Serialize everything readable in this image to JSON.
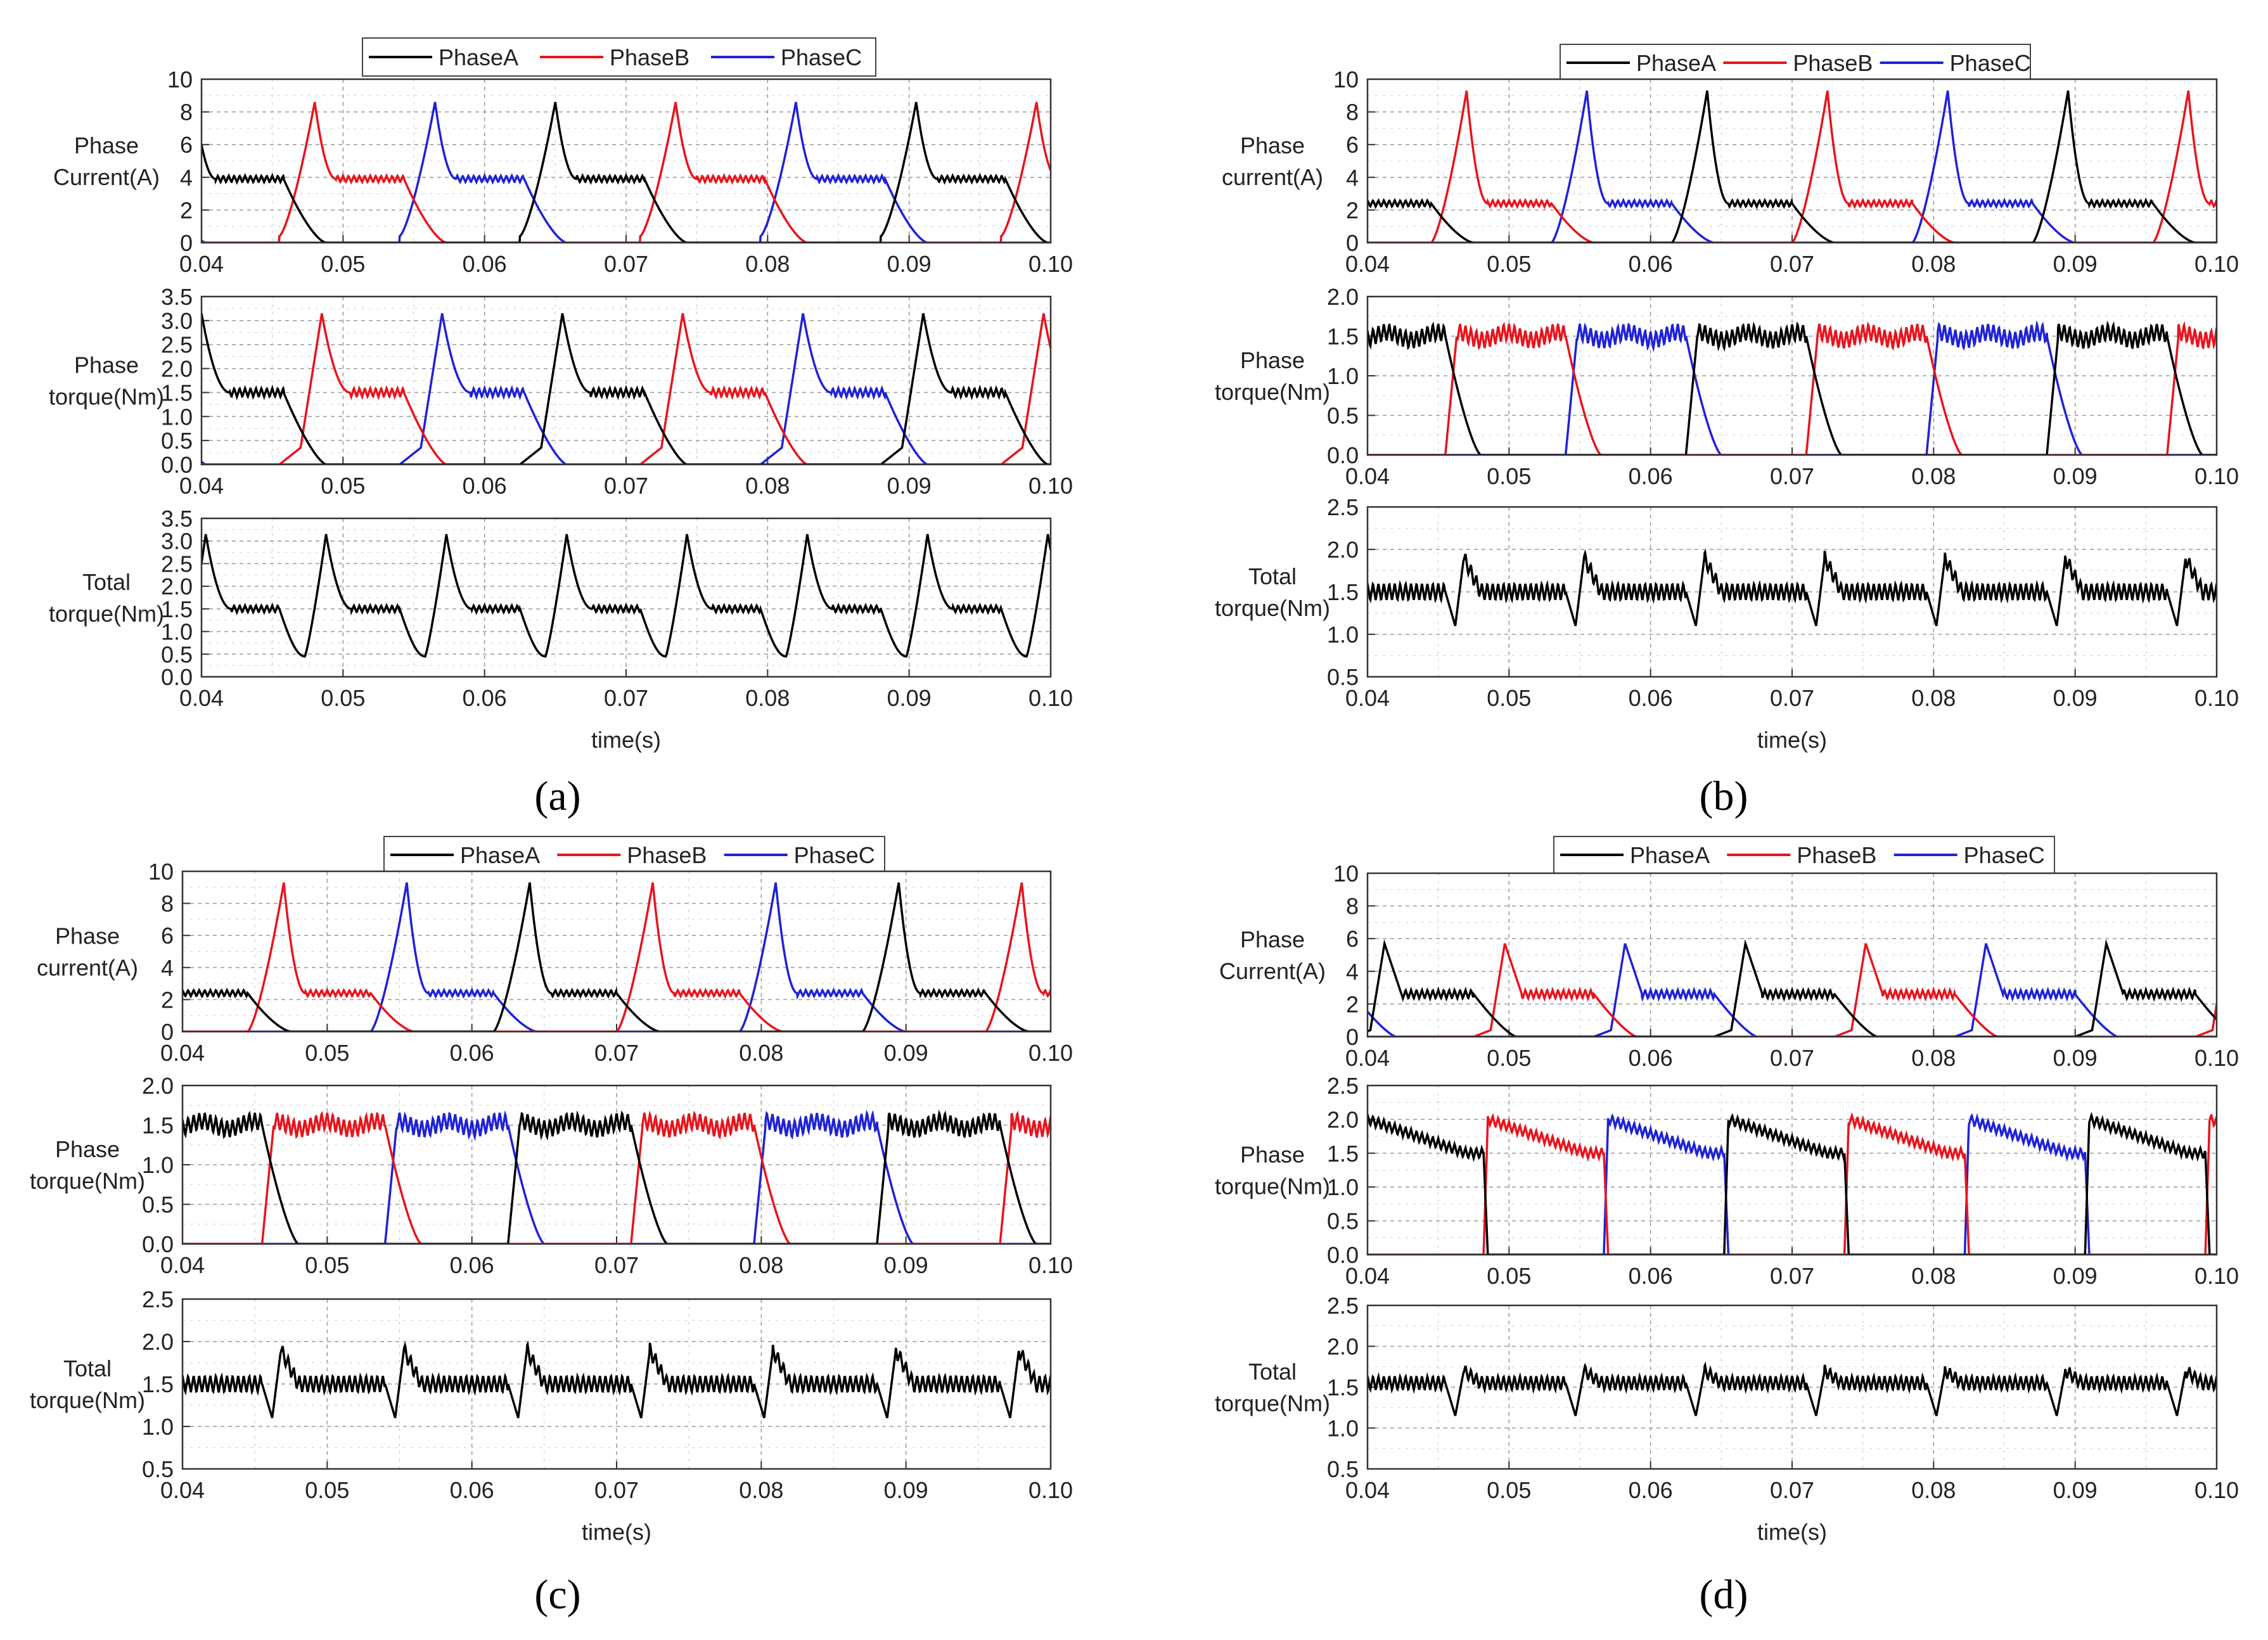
{
  "figure": {
    "time_label": "time(s)",
    "x_ticks": [
      "0.04",
      "0.05",
      "0.06",
      "0.07",
      "0.08",
      "0.09",
      "0.10"
    ],
    "x_range": [
      0.04,
      0.1
    ],
    "colors": {
      "PhaseA": "#000000",
      "PhaseB": "#e8141c",
      "PhaseC": "#1f22d6"
    },
    "legend": [
      "PhaseA",
      "PhaseB",
      "PhaseC"
    ]
  },
  "chart_data": [
    {
      "type": "line",
      "id": "a",
      "caption": "(a)",
      "legend": [
        "PhaseA",
        "PhaseB",
        "PhaseC"
      ],
      "xlabel": "time(s)",
      "x_ticks": [
        "0.04",
        "0.05",
        "0.06",
        "0.07",
        "0.08",
        "0.09",
        "0.10"
      ],
      "period": 0.0255,
      "panels": [
        {
          "kind": "current",
          "ylabel": [
            "Phase",
            "Current(A)"
          ],
          "ylim": [
            0,
            10
          ],
          "y_ticks": [
            "0",
            "2",
            "4",
            "6",
            "8",
            "10"
          ],
          "onsets": {
            "PhaseA": 0.037,
            "PhaseB": 0.0455,
            "PhaseC": 0.054
          },
          "on_width": 0.0088,
          "peak": 8.6,
          "flat": 3.9,
          "start_level": 0.4,
          "ripple": 0.05,
          "tail": 0.003
        },
        {
          "kind": "phase_torque",
          "ylabel": [
            "Phase",
            "torque(Nm)"
          ],
          "ylim": [
            0,
            3.5
          ],
          "y_ticks": [
            "0.0",
            "0.5",
            "1.0",
            "1.5",
            "2.0",
            "2.5",
            "3.0",
            "3.5"
          ],
          "onsets": {
            "PhaseA": 0.037,
            "PhaseB": 0.0455,
            "PhaseC": 0.054
          },
          "on_width": 0.0088,
          "peak": 3.15,
          "flat": 1.5,
          "ripple": 0.06,
          "tail": 0.003
        },
        {
          "kind": "total",
          "ylabel": [
            "Total",
            "torque(Nm)"
          ],
          "ylim": [
            0,
            3.5
          ],
          "y_ticks": [
            "0.0",
            "0.5",
            "1.0",
            "1.5",
            "2.0",
            "2.5",
            "3.0",
            "3.5"
          ],
          "peak": 3.15,
          "flat": 1.5,
          "dip": 0.45,
          "ripple": 0.05
        }
      ]
    },
    {
      "type": "line",
      "id": "b",
      "caption": "(b)",
      "legend": [
        "PhaseA",
        "PhaseB",
        "PhaseC"
      ],
      "xlabel": "time(s)",
      "x_ticks": [
        "0.04",
        "0.05",
        "0.06",
        "0.07",
        "0.08",
        "0.09",
        "0.10"
      ],
      "period": 0.0255,
      "panels": [
        {
          "kind": "current",
          "ylabel": [
            "Phase",
            "current(A)"
          ],
          "ylim": [
            0,
            10
          ],
          "y_ticks": [
            "0",
            "2",
            "4",
            "6",
            "8",
            "10"
          ],
          "onsets": {
            "PhaseA": 0.036,
            "PhaseB": 0.0445,
            "PhaseC": 0.053
          },
          "on_width": 0.0085,
          "peak": 9.3,
          "flat": 2.4,
          "start_level": 0,
          "ripple": 0.08,
          "tail": 0.003
        },
        {
          "kind": "phase_torque_flat",
          "ylabel": [
            "Phase",
            "torque(Nm)"
          ],
          "ylim": [
            0,
            2.0
          ],
          "y_ticks": [
            "0.0",
            "0.5",
            "1.0",
            "1.5",
            "2.0"
          ],
          "onsets": {
            "PhaseA": 0.037,
            "PhaseB": 0.0455,
            "PhaseC": 0.054
          },
          "on_width": 0.0085,
          "flat": 1.5,
          "ripple": 0.12,
          "tail": 0.0025
        },
        {
          "kind": "total_flat",
          "ylabel": [
            "Total",
            "torque(Nm)"
          ],
          "ylim": [
            0.5,
            2.5
          ],
          "y_ticks": [
            "0.5",
            "1.0",
            "1.5",
            "2.0",
            "2.5"
          ],
          "flat": 1.5,
          "dip": 1.1,
          "bump": 1.9,
          "ripple": 0.12
        }
      ]
    },
    {
      "type": "line",
      "id": "c",
      "caption": "(c)",
      "legend": [
        "PhaseA",
        "PhaseB",
        "PhaseC"
      ],
      "xlabel": "time(s)",
      "x_ticks": [
        "0.04",
        "0.05",
        "0.06",
        "0.07",
        "0.08",
        "0.09",
        "0.10"
      ],
      "period": 0.0255,
      "panels": [
        {
          "kind": "current",
          "ylabel": [
            "Phase",
            "current(A)"
          ],
          "ylim": [
            0,
            10
          ],
          "y_ticks": [
            "0",
            "2",
            "4",
            "6",
            "8",
            "10"
          ],
          "onsets": {
            "PhaseA": 0.036,
            "PhaseB": 0.0445,
            "PhaseC": 0.053
          },
          "on_width": 0.0085,
          "peak": 9.3,
          "flat": 2.4,
          "start_level": 0,
          "ripple": 0.08,
          "tail": 0.003
        },
        {
          "kind": "phase_torque_flat",
          "ylabel": [
            "Phase",
            "torque(Nm)"
          ],
          "ylim": [
            0,
            2.0
          ],
          "y_ticks": [
            "0.0",
            "0.5",
            "1.0",
            "1.5",
            "2.0"
          ],
          "onsets": {
            "PhaseA": 0.037,
            "PhaseB": 0.0455,
            "PhaseC": 0.054
          },
          "on_width": 0.0085,
          "flat": 1.5,
          "ripple": 0.12,
          "tail": 0.0025
        },
        {
          "kind": "total_flat",
          "ylabel": [
            "Total",
            "torque(Nm)"
          ],
          "ylim": [
            0.5,
            2.5
          ],
          "y_ticks": [
            "0.5",
            "1.0",
            "1.5",
            "2.0",
            "2.5"
          ],
          "flat": 1.5,
          "dip": 1.1,
          "bump": 1.9,
          "ripple": 0.12
        }
      ]
    },
    {
      "type": "line",
      "id": "d",
      "caption": "(d)",
      "legend": [
        "PhaseA",
        "PhaseB",
        "PhaseC"
      ],
      "xlabel": "time(s)",
      "x_ticks": [
        "0.04",
        "0.05",
        "0.06",
        "0.07",
        "0.08",
        "0.09",
        "0.10"
      ],
      "period": 0.0255,
      "panels": [
        {
          "kind": "current_adv",
          "ylabel": [
            "Phase",
            "Current(A)"
          ],
          "ylim": [
            0,
            10
          ],
          "y_ticks": [
            "0",
            "2",
            "4",
            "6",
            "8",
            "10"
          ],
          "onsets": {
            "PhaseA": 0.039,
            "PhaseB": 0.0475,
            "PhaseC": 0.056
          },
          "on_width": 0.0085,
          "peak": 5.7,
          "flat": 2.6,
          "pre": 0.4,
          "ripple": 0.1,
          "tail": 0.003
        },
        {
          "kind": "phase_torque_d",
          "ylabel": [
            "Phase",
            "torque(Nm)"
          ],
          "ylim": [
            0,
            2.5
          ],
          "y_ticks": [
            "0.0",
            "0.5",
            "1.0",
            "1.5",
            "2.0",
            "2.5"
          ],
          "onsets": {
            "PhaseA": 0.0397,
            "PhaseB": 0.0482,
            "PhaseC": 0.0567
          },
          "on_width": 0.0085,
          "peak": 2.0,
          "flat": 1.5,
          "ripple": 0.1
        },
        {
          "kind": "total_flat",
          "ylabel": [
            "Total",
            "torque(Nm)"
          ],
          "ylim": [
            0.5,
            2.5
          ],
          "y_ticks": [
            "0.5",
            "1.0",
            "1.5",
            "2.0",
            "2.5"
          ],
          "flat": 1.55,
          "dip": 1.15,
          "bump": 1.7,
          "ripple": 0.1
        }
      ]
    }
  ]
}
